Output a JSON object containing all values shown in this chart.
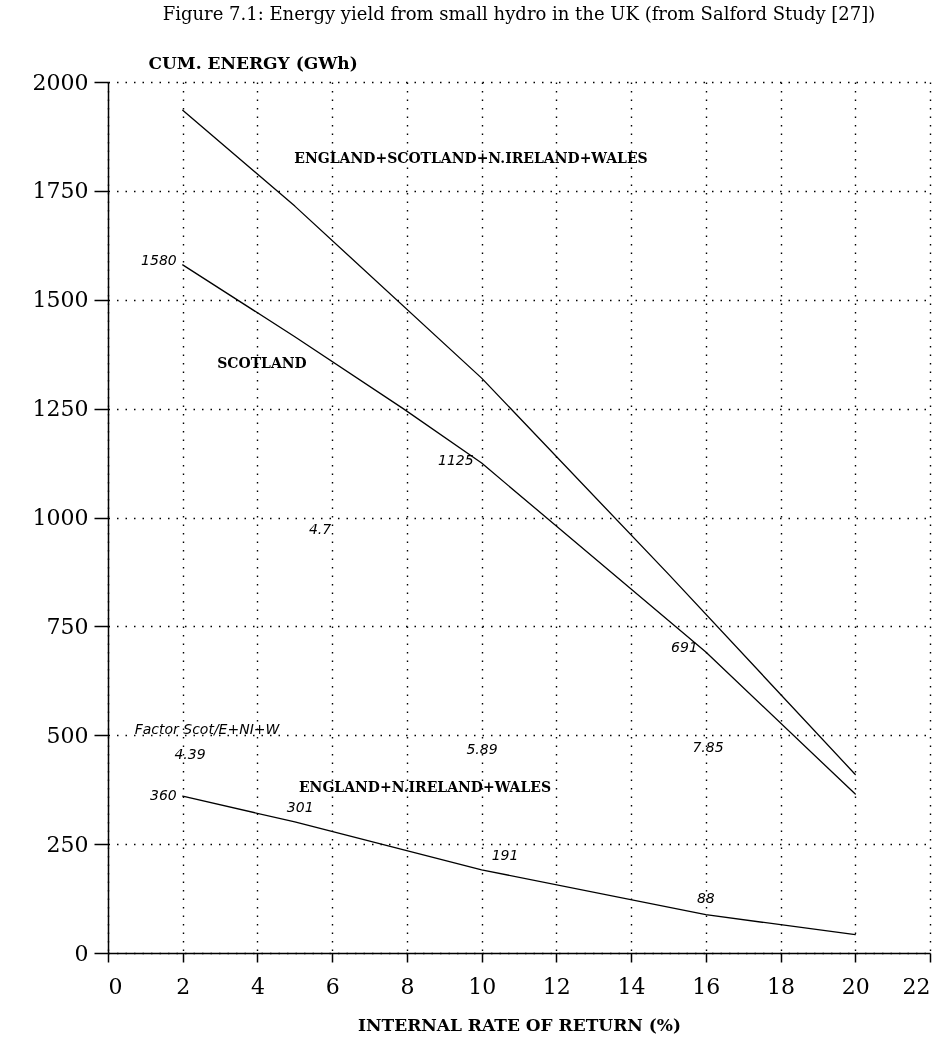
{
  "chart_data": {
    "type": "line",
    "title": "Figure 7.1: Energy yield from small hydro in the UK (from Salford Study [27])",
    "xlabel": "INTERNAL RATE OF RETURN (%)",
    "ylabel": "CUM. ENERGY (GWh)",
    "xlim": [
      0,
      22
    ],
    "xticks": [
      0,
      2,
      4,
      6,
      8,
      10,
      12,
      14,
      16,
      18,
      20,
      22
    ],
    "ylim": [
      0,
      2000
    ],
    "yticks": [
      0,
      250,
      500,
      750,
      1000,
      1250,
      1500,
      1750,
      2000
    ],
    "grid": true,
    "legend": false,
    "marker": "none",
    "line_style": "solid",
    "series": [
      {
        "name": "ENGLAND+SCOTLAND+N.IRELAND+WALES",
        "color": "#000000",
        "x": [
          2,
          5,
          10,
          15,
          20
        ],
        "values": [
          1935,
          1715,
          1320,
          870,
          410
        ]
      },
      {
        "name": "SCOTLAND",
        "color": "#000000",
        "x": [
          2,
          5,
          7.9,
          10,
          16,
          20
        ],
        "values": [
          1580,
          1415,
          1250,
          1125,
          691,
          365
        ]
      },
      {
        "name": "ENGLAND+N.IRELAND+WALES",
        "color": "#000000",
        "x": [
          2,
          5,
          10,
          16,
          20
        ],
        "values": [
          360,
          301,
          191,
          88,
          42
        ]
      }
    ],
    "annotations": [
      {
        "text": "1580",
        "x": 2,
        "y": 1580
      },
      {
        "text": "1125",
        "x": 10,
        "y": 1125
      },
      {
        "text": "691",
        "x": 16,
        "y": 691
      },
      {
        "text": "360",
        "x": 2,
        "y": 360
      },
      {
        "text": "301",
        "x": 5,
        "y": 301
      },
      {
        "text": "191",
        "x": 10,
        "y": 191
      },
      {
        "text": "88",
        "x": 16,
        "y": 88
      },
      "Factor Scot/E+NI+W",
      "4.39",
      "5.89",
      "7.85",
      "4.7"
    ]
  }
}
